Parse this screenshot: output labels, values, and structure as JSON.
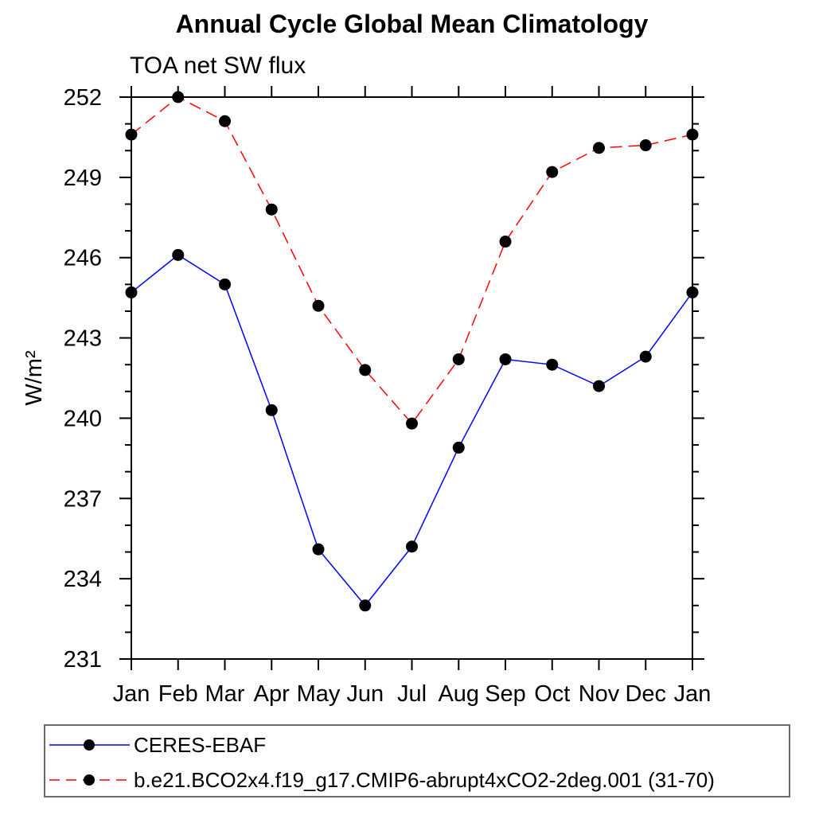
{
  "page_title": "Annual Cycle Global Mean Climatology",
  "chart_data": {
    "type": "line",
    "title": "Annual Cycle Global Mean Climatology",
    "subtitle": "TOA net SW flux",
    "xlabel": "",
    "ylabel": "W/m²",
    "categories": [
      "Jan",
      "Feb",
      "Mar",
      "Apr",
      "May",
      "Jun",
      "Jul",
      "Aug",
      "Sep",
      "Oct",
      "Nov",
      "Dec",
      "Jan"
    ],
    "ylim": [
      231,
      252
    ],
    "y_major_step": 3,
    "y_minor_step": 1,
    "y_tick_labels": [
      "231",
      "234",
      "237",
      "240",
      "243",
      "246",
      "249",
      "252"
    ],
    "grid": false,
    "legend_position": "bottom-box",
    "marker": "filled-circle",
    "marker_color": "#000000",
    "series": [
      {
        "name": "CERES-EBAF",
        "color": "#0000ff",
        "line_style": "solid",
        "values": [
          244.7,
          246.1,
          245.0,
          240.3,
          235.1,
          233.0,
          235.2,
          238.9,
          242.2,
          242.0,
          241.2,
          242.3,
          244.7
        ]
      },
      {
        "name": "b.e21.BCO2x4.f19_g17.CMIP6-abrupt4xCO2-2deg.001 (31-70)",
        "color": "#ff0000",
        "line_style": "dashed",
        "values": [
          250.6,
          252.0,
          251.1,
          247.8,
          244.2,
          241.8,
          239.8,
          242.2,
          246.6,
          249.2,
          250.1,
          250.2,
          250.6
        ]
      }
    ]
  }
}
